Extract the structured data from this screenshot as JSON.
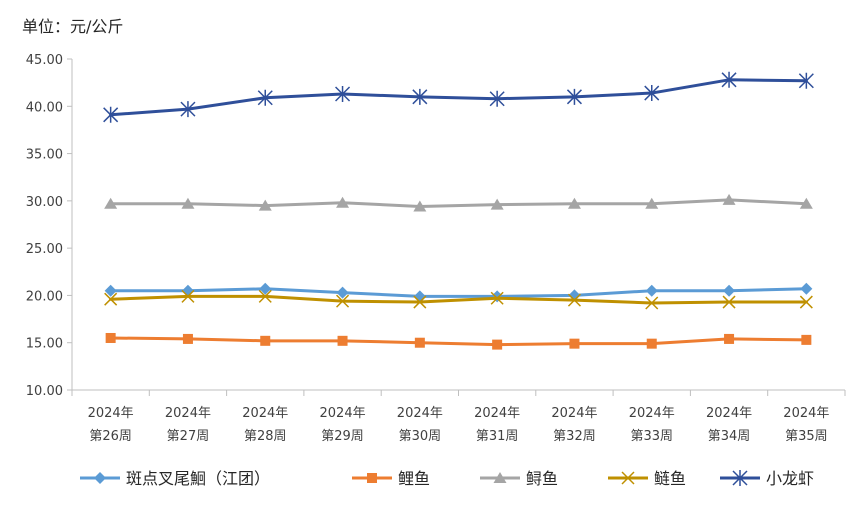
{
  "chart_data": {
    "type": "line",
    "unit_label": "单位：元/公斤",
    "categories": [
      [
        "2024年",
        "第26周"
      ],
      [
        "2024年",
        "第27周"
      ],
      [
        "2024年",
        "第28周"
      ],
      [
        "2024年",
        "第29周"
      ],
      [
        "2024年",
        "第30周"
      ],
      [
        "2024年",
        "第31周"
      ],
      [
        "2024年",
        "第32周"
      ],
      [
        "2024年",
        "第33周"
      ],
      [
        "2024年",
        "第34周"
      ],
      [
        "2024年",
        "第35周"
      ]
    ],
    "ylim": [
      10,
      45
    ],
    "yticks": [
      "10.00",
      "15.00",
      "20.00",
      "25.00",
      "30.00",
      "35.00",
      "40.00",
      "45.00"
    ],
    "grid": false,
    "legend_position": "bottom",
    "series": [
      {
        "name": "斑点叉尾鮰（江团）",
        "color": "#5B9BD5",
        "marker": "diamond",
        "values": [
          20.5,
          20.5,
          20.7,
          20.3,
          19.9,
          19.9,
          20.0,
          20.5,
          20.5,
          20.7
        ]
      },
      {
        "name": "鲤鱼",
        "color": "#ED7D31",
        "marker": "square",
        "values": [
          15.5,
          15.4,
          15.2,
          15.2,
          15.0,
          14.8,
          14.9,
          14.9,
          15.4,
          15.3
        ]
      },
      {
        "name": "鲟鱼",
        "color": "#A5A5A5",
        "marker": "triangle",
        "values": [
          29.7,
          29.7,
          29.5,
          29.8,
          29.4,
          29.6,
          29.7,
          29.7,
          30.1,
          29.7
        ]
      },
      {
        "name": "鲢鱼",
        "color": "#BF9000",
        "marker": "x",
        "values": [
          19.6,
          19.9,
          19.9,
          19.4,
          19.3,
          19.7,
          19.5,
          19.2,
          19.3,
          19.3
        ]
      },
      {
        "name": "小龙虾",
        "color": "#2F4F9A",
        "marker": "star",
        "values": [
          39.1,
          39.7,
          40.9,
          41.3,
          41.0,
          40.8,
          41.0,
          41.4,
          42.8,
          42.7
        ]
      }
    ]
  }
}
